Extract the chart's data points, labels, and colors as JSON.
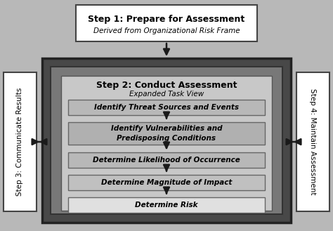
{
  "bg_color": "#b8b8b8",
  "step1": {
    "text_bold": "Step 1: Prepare for Assessment",
    "text_italic": "Derived from Organizational Risk Frame",
    "box_color": "#ffffff",
    "border_color": "#444444"
  },
  "step2_outer_color": "#484848",
  "step2_mid_color": "#787878",
  "step2_content_bg": "#c8c8c8",
  "step2_title_bold": "Step 2: Conduct Assessment",
  "step2_title_italic": "Expanded Task View",
  "substeps": [
    "Identify Threat Sources and Events",
    "Identify Vulnerabilities and\nPredisposing Conditions",
    "Determine Likelihood of Occurrence",
    "Determine Magnitude of Impact",
    "Determine Risk"
  ],
  "substep_bg_colors": [
    "#b8b8b8",
    "#b0b0b0",
    "#b8b8b8",
    "#c0c0c0",
    "#e0e0e0"
  ],
  "substep_border": "#666666",
  "step3_text": "Step 3: Communicate Results",
  "step4_text": "Step 4: Maintain Assessment",
  "side_box_color": "#ffffff",
  "side_border_color": "#444444",
  "arrow_color": "#1a1a1a"
}
